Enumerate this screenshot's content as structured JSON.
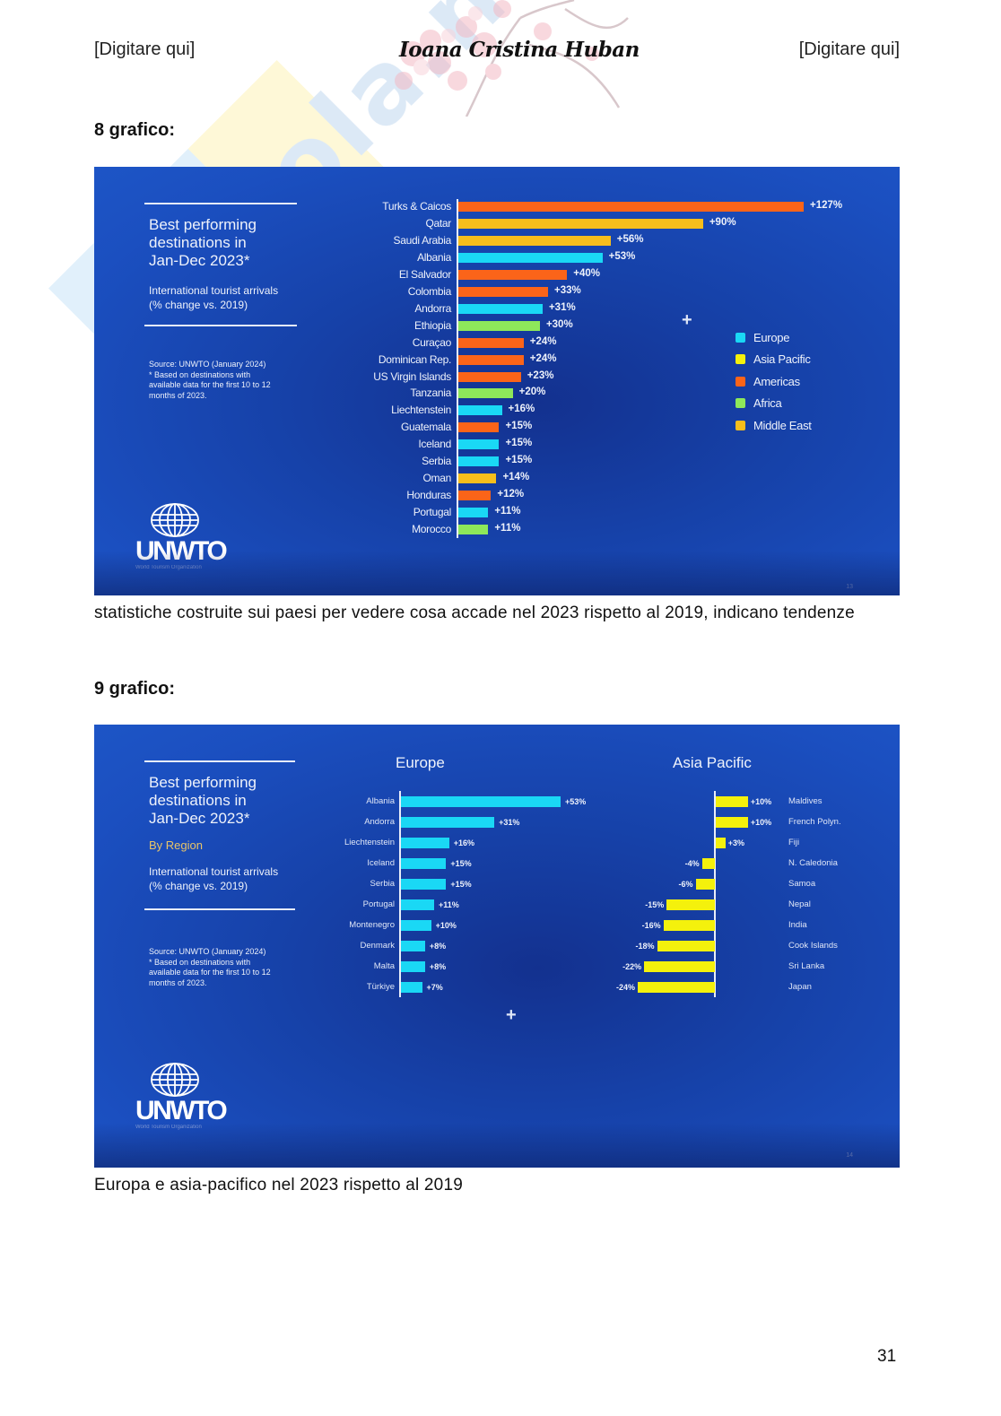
{
  "header": {
    "left": "[Digitare qui]",
    "center": "Ioana Cristina Huban",
    "right": "[Digitare qui]"
  },
  "watermark": {
    "text": "Skuola.net"
  },
  "sections": [
    {
      "heading": "8 grafico:",
      "caption": "statistiche costruite sui paesi per vedere cosa accade nel 2023 rispetto al 2019, indicano tendenze"
    },
    {
      "heading": "9 grafico:",
      "caption": "Europa e asia-pacifico nel 2023 rispetto al 2019"
    }
  ],
  "slides": [
    {
      "title_lines": [
        "Best performing",
        "destinations in",
        "Jan-Dec 2023*"
      ],
      "subtitle_lines": [
        "International tourist arrivals",
        "(% change vs. 2019)"
      ],
      "source_lines": [
        "Source: UNWTO (January 2024)",
        "* Based on destinations with",
        "available data for the first 10 to 12",
        "months of 2023."
      ],
      "logo": {
        "name": "UNWTO",
        "sub": "World Tourism Organization"
      },
      "slide_number": "13"
    },
    {
      "title_lines": [
        "Best performing",
        "destinations in",
        "Jan-Dec 2023*"
      ],
      "by_region": "By Region",
      "subtitle_lines": [
        "International tourist arrivals",
        "(% change vs. 2019)"
      ],
      "source_lines": [
        "Source: UNWTO (January 2024)",
        "* Based on destinations with",
        "available data for the first 10 to 12",
        "months of 2023."
      ],
      "logo": {
        "name": "UNWTO",
        "sub": "World Tourism Organization"
      },
      "slide_number": "14"
    }
  ],
  "colors": {
    "Europe": "#1ad8f5",
    "Asia Pacific": "#f4f10c",
    "Americas": "#fb6419",
    "Africa": "#8ee85a",
    "Middle East": "#f7be1c"
  },
  "chart_data": [
    {
      "type": "bar",
      "orientation": "horizontal",
      "title": "Best performing destinations in Jan-Dec 2023*",
      "subtitle": "International tourist arrivals (% change vs. 2019)",
      "xlabel": "",
      "ylabel": "",
      "legend": [
        "Europe",
        "Asia Pacific",
        "Americas",
        "Africa",
        "Middle East"
      ],
      "legend_position": "right",
      "grid": false,
      "categories": [
        "Turks & Caicos",
        "Qatar",
        "Saudi Arabia",
        "Albania",
        "El Salvador",
        "Colombia",
        "Andorra",
        "Ethiopia",
        "Curaçao",
        "Dominican Rep.",
        "US Virgin Islands",
        "Tanzania",
        "Liechtenstein",
        "Guatemala",
        "Iceland",
        "Serbia",
        "Oman",
        "Honduras",
        "Portugal",
        "Morocco"
      ],
      "values": [
        127,
        90,
        56,
        53,
        40,
        33,
        31,
        30,
        24,
        24,
        23,
        20,
        16,
        15,
        15,
        15,
        14,
        12,
        11,
        11
      ],
      "labels": [
        "+127%",
        "+90%",
        "+56%",
        "+53%",
        "+40%",
        "+33%",
        "+31%",
        "+30%",
        "+24%",
        "+24%",
        "+23%",
        "+20%",
        "+16%",
        "+15%",
        "+15%",
        "+15%",
        "+14%",
        "+12%",
        "+11%",
        "+11%"
      ],
      "regions": [
        "Americas",
        "Middle East",
        "Middle East",
        "Europe",
        "Americas",
        "Americas",
        "Europe",
        "Africa",
        "Americas",
        "Americas",
        "Americas",
        "Africa",
        "Europe",
        "Americas",
        "Europe",
        "Europe",
        "Middle East",
        "Americas",
        "Europe",
        "Africa"
      ],
      "xlim": [
        0,
        130
      ]
    },
    {
      "type": "bar",
      "orientation": "horizontal",
      "title": "Europe",
      "series": [
        {
          "name": "Europe",
          "color": "#1ad8f5"
        }
      ],
      "categories": [
        "Albania",
        "Andorra",
        "Liechtenstein",
        "Iceland",
        "Serbia",
        "Portugal",
        "Montenegro",
        "Denmark",
        "Malta",
        "Türkiye"
      ],
      "values": [
        53,
        31,
        16,
        15,
        15,
        11,
        10,
        8,
        8,
        7
      ],
      "labels": [
        "+53%",
        "+31%",
        "+16%",
        "+15%",
        "+15%",
        "+11%",
        "+10%",
        "+8%",
        "+8%",
        "+7%"
      ],
      "xlim": [
        0,
        60
      ],
      "grid": false
    },
    {
      "type": "bar",
      "orientation": "horizontal",
      "title": "Asia Pacific",
      "series": [
        {
          "name": "Asia Pacific",
          "color": "#f4f10c"
        }
      ],
      "categories": [
        "Maldives",
        "French Polyn.",
        "Fiji",
        "N. Caledonia",
        "Samoa",
        "Nepal",
        "India",
        "Cook Islands",
        "Sri Lanka",
        "Japan"
      ],
      "values": [
        10,
        10,
        3,
        -4,
        -6,
        -15,
        -16,
        -18,
        -22,
        -24
      ],
      "labels": [
        "+10%",
        "+10%",
        "+3%",
        "-4%",
        "-6%",
        "-15%",
        "-16%",
        "-18%",
        "-22%",
        "-24%"
      ],
      "xlim": [
        -25,
        12
      ],
      "grid": false
    }
  ],
  "page_number": "31"
}
